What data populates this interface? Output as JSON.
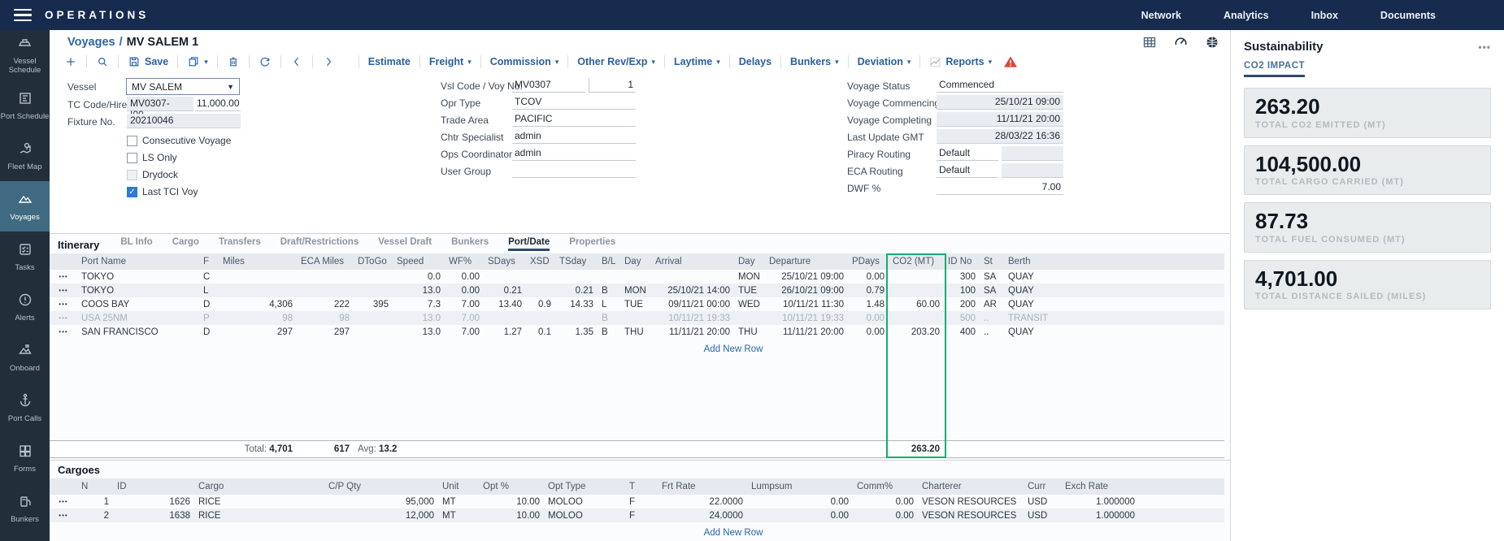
{
  "colors": {
    "navy": "#172b4f",
    "accent_blue": "#2a66a8",
    "green_highlight": "#15ad72",
    "link_date_blue": "#7b82dc",
    "sidebar_active": "#3f6a82",
    "warning_red": "#e04438"
  },
  "topbar": {
    "title": "OPERATIONS",
    "nav": [
      "Network",
      "Analytics",
      "Inbox",
      "Documents"
    ]
  },
  "sidebar": {
    "items": [
      {
        "label": "Vessel Schedule",
        "icon": "vessel-schedule",
        "active": false
      },
      {
        "label": "Port Schedule",
        "icon": "port-schedule",
        "active": false
      },
      {
        "label": "Fleet Map",
        "icon": "fleet-map",
        "active": false
      },
      {
        "label": "Voyages",
        "icon": "voyages",
        "active": true
      },
      {
        "label": "Tasks",
        "icon": "tasks",
        "active": false
      },
      {
        "label": "Alerts",
        "icon": "alerts",
        "active": false
      },
      {
        "label": "Onboard",
        "icon": "onboard",
        "active": false
      },
      {
        "label": "Port Calls",
        "icon": "port-calls",
        "active": false
      },
      {
        "label": "Forms",
        "icon": "forms",
        "active": false
      },
      {
        "label": "Bunkers",
        "icon": "bunkers",
        "active": false
      }
    ]
  },
  "page": {
    "breadcrumb": "Voyages",
    "separator": "/",
    "title": "MV SALEM 1"
  },
  "toolbar": {
    "icon_buttons": [
      "add",
      "search"
    ],
    "save_label": "Save",
    "icon_buttons2": [
      "copy",
      "delete",
      "refresh",
      "prev",
      "next"
    ],
    "menus": [
      {
        "label": "Estimate",
        "caret": false,
        "icon": ""
      },
      {
        "label": "Freight",
        "caret": true,
        "icon": ""
      },
      {
        "label": "Commission",
        "caret": true,
        "icon": ""
      },
      {
        "label": "Other Rev/Exp",
        "caret": true,
        "icon": ""
      },
      {
        "label": "Laytime",
        "caret": true,
        "icon": ""
      },
      {
        "label": "Delays",
        "caret": false,
        "icon": ""
      },
      {
        "label": "Bunkers",
        "caret": true,
        "icon": ""
      },
      {
        "label": "Deviation",
        "caret": true,
        "icon": ""
      },
      {
        "label": "Reports",
        "caret": true,
        "icon": "chart"
      }
    ]
  },
  "form": {
    "left": {
      "vessel_label": "Vessel",
      "vessel_value": "MV SALEM",
      "tc_label": "TC Code/Hire",
      "tc_code": "MV0307-I00...",
      "tc_hire": "11,000.00",
      "fixture_label": "Fixture No.",
      "fixture_value": "20210046",
      "checkboxes": [
        {
          "label": "Consecutive Voyage",
          "checked": false,
          "disabled": false
        },
        {
          "label": "LS Only",
          "checked": false,
          "disabled": false
        },
        {
          "label": "Drydock",
          "checked": false,
          "disabled": true
        },
        {
          "label": "Last TCI Voy",
          "checked": true,
          "disabled": false
        }
      ]
    },
    "middle": {
      "rows": [
        {
          "label": "Vsl Code / Voy No.",
          "value": "MV0307",
          "value2": "1"
        },
        {
          "label": "Opr Type",
          "value": "TCOV",
          "value2": null
        },
        {
          "label": "Trade Area",
          "value": "PACIFIC",
          "value2": null
        },
        {
          "label": "Chtr Specialist",
          "value": "admin",
          "value2": null
        },
        {
          "label": "Ops Coordinator",
          "value": "admin",
          "value2": null
        },
        {
          "label": "User Group",
          "value": "",
          "value2": null
        }
      ]
    },
    "right": {
      "rows": [
        {
          "label": "Voyage Status",
          "value": "Commenced",
          "style": "plain"
        },
        {
          "label": "Voyage Commencing",
          "value": "25/10/21 09:00",
          "style": "gray-right"
        },
        {
          "label": "Voyage Completing",
          "value": "11/11/21 20:00",
          "style": "gray-right"
        },
        {
          "label": "Last Update GMT",
          "value": "28/03/22 16:36",
          "style": "gray-right"
        },
        {
          "label": "Piracy Routing",
          "value": "Default",
          "style": "split"
        },
        {
          "label": "ECA Routing",
          "value": "Default",
          "style": "split"
        },
        {
          "label": "DWF %",
          "value": "7.00",
          "style": "plain-right"
        }
      ]
    }
  },
  "itinerary": {
    "title": "Itinerary",
    "tabs": [
      {
        "label": "BL Info",
        "active": false
      },
      {
        "label": "Cargo",
        "active": false
      },
      {
        "label": "Transfers",
        "active": false
      },
      {
        "label": "Draft/Restrictions",
        "active": false
      },
      {
        "label": "Vessel Draft",
        "active": false
      },
      {
        "label": "Bunkers",
        "active": false
      },
      {
        "label": "Port/Date",
        "active": true
      },
      {
        "label": "Properties",
        "active": false
      }
    ],
    "columns": [
      "",
      "Port Name",
      "F",
      "Miles",
      "ECA Miles",
      "DToGo",
      "Speed",
      "WF%",
      "SDays",
      "XSD",
      "TSday",
      "B/L",
      "Day",
      "Arrival",
      "Day",
      "Departure",
      "PDays",
      "CO2 (MT)",
      "ID No",
      "St",
      "Berth",
      ""
    ],
    "rows": [
      {
        "cells": [
          "•••",
          "TOKYO",
          "C",
          "",
          "",
          "",
          "0.0",
          "0.00",
          "",
          "",
          "",
          "",
          "",
          "",
          "MON",
          "25/10/21 09:00",
          "0.00",
          "",
          "300",
          "SA",
          "QUAY",
          ""
        ],
        "muted": false,
        "blue": []
      },
      {
        "cells": [
          "•••",
          "TOKYO",
          "L",
          "",
          "",
          "",
          "13.0",
          "0.00",
          "0.21",
          "",
          "0.21",
          "B",
          "MON",
          "25/10/21 14:00",
          "TUE",
          "26/10/21 09:00",
          "0.79",
          "",
          "100",
          "SA",
          "QUAY",
          ""
        ],
        "muted": false,
        "blue": []
      },
      {
        "cells": [
          "•••",
          "COOS BAY",
          "D",
          "4,306",
          "222",
          "395",
          "7.3",
          "7.00",
          "13.40",
          "0.9",
          "14.33",
          "L",
          "TUE",
          "09/11/21 00:00",
          "WED",
          "10/11/21 11:30",
          "1.48",
          "60.00",
          "200",
          "AR",
          "QUAY",
          ""
        ],
        "muted": false,
        "blue": [
          15
        ]
      },
      {
        "cells": [
          "•••",
          "USA 25NM",
          "P",
          "98",
          "98",
          "",
          "13.0",
          "7.00",
          "",
          "",
          "",
          "B",
          "",
          "10/11/21 19:33",
          "",
          "10/11/21 19:33",
          "0.00",
          "",
          "500",
          "..",
          "TRANSIT",
          ""
        ],
        "muted": true,
        "blue": []
      },
      {
        "cells": [
          "•••",
          "SAN FRANCISCO",
          "D",
          "297",
          "297",
          "",
          "13.0",
          "7.00",
          "1.27",
          "0.1",
          "1.35",
          "B",
          "THU",
          "11/11/21 20:00",
          "THU",
          "11/11/21 20:00",
          "0.00",
          "203.20",
          "400",
          "..",
          "QUAY",
          ""
        ],
        "muted": false,
        "blue": [
          13,
          15
        ]
      }
    ],
    "add_row_label": "Add New Row",
    "totals": {
      "total_label": "Total:",
      "total_miles": "4,701",
      "eca_total": "617",
      "avg_label": "Avg:",
      "avg_speed": "13.2",
      "co2_total": "263.20"
    }
  },
  "cargoes": {
    "title": "Cargoes",
    "columns": [
      "",
      "N",
      "ID",
      "Cargo",
      "C/P Qty",
      "Unit",
      "Opt %",
      "Opt Type",
      "T",
      "Frt Rate",
      "Lumpsum",
      "Comm%",
      "Charterer",
      "Curr",
      "Exch Rate",
      ""
    ],
    "rows": [
      {
        "cells": [
          "•••",
          "1",
          "1626",
          "RICE",
          "95,000",
          "MT",
          "10.00",
          "MOLOO",
          "F",
          "22.0000",
          "0.00",
          "0.00",
          "VESON RESOURCES",
          "USD",
          "1.000000",
          ""
        ]
      },
      {
        "cells": [
          "•••",
          "2",
          "1638",
          "RICE",
          "12,000",
          "MT",
          "10.00",
          "MOLOO",
          "F",
          "24.0000",
          "0.00",
          "0.00",
          "VESON RESOURCES",
          "USD",
          "1.000000",
          ""
        ]
      }
    ],
    "add_row_label": "Add New Row"
  },
  "sustainability": {
    "title": "Sustainability",
    "menu_label": "•••",
    "tab": "CO2 IMPACT",
    "cards": [
      {
        "value": "263.20",
        "label": "TOTAL CO2 EMITTED (MT)"
      },
      {
        "value": "104,500.00",
        "label": "TOTAL CARGO CARRIED (MT)"
      },
      {
        "value": "87.73",
        "label": "TOTAL FUEL CONSUMED (MT)"
      },
      {
        "value": "4,701.00",
        "label": "TOTAL DISTANCE SAILED (MILES)"
      }
    ]
  }
}
